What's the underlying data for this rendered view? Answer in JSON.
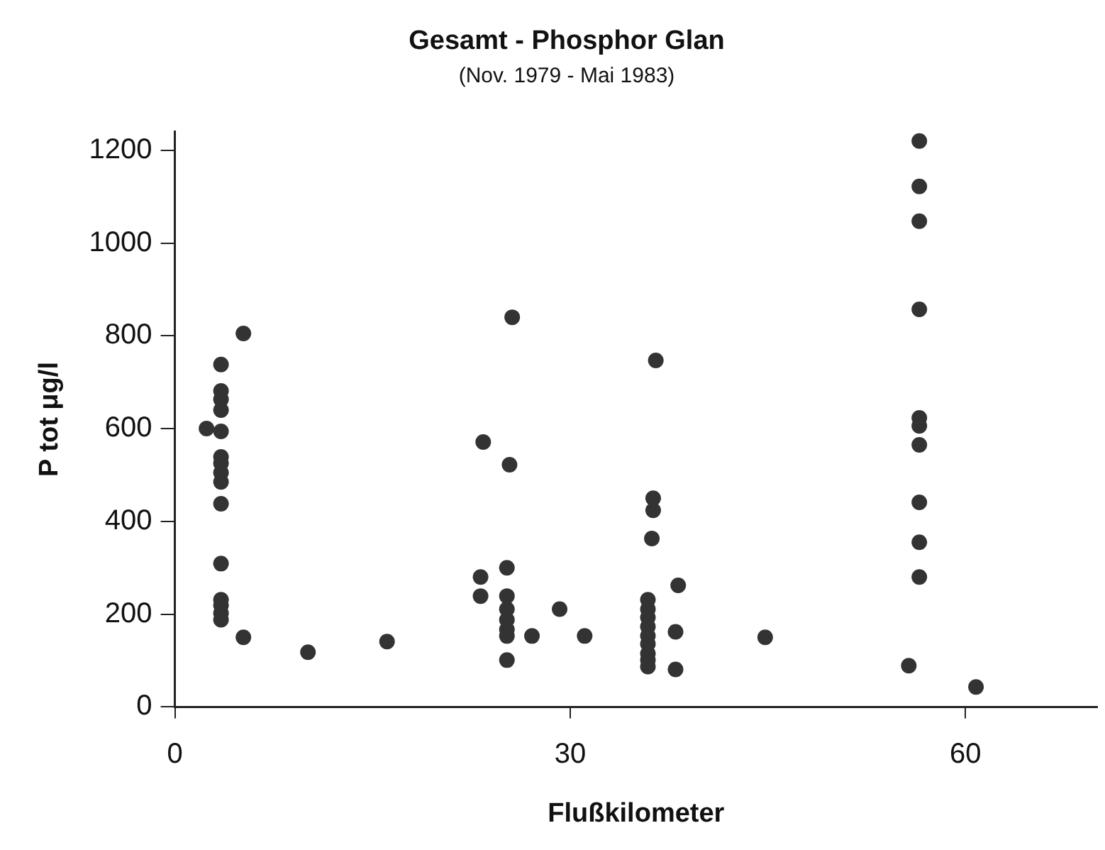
{
  "chart_data": {
    "type": "scatter",
    "title": "Gesamt - Phosphor Glan",
    "subtitle": "(Nov. 1979 - Mai 1983)",
    "xlabel": "Flußkilometer",
    "ylabel": "P tot μg/l",
    "x": [
      3.5,
      3.5,
      3.5,
      3.5,
      3.5,
      3.5,
      3.5,
      3.5,
      3.5,
      3.5,
      3.5,
      3.5,
      3.5,
      3.5,
      3.5,
      2.4,
      5.2,
      5.2,
      10.1,
      16.1,
      25.6,
      23.4,
      25.4,
      23.2,
      23.2,
      25.2,
      25.2,
      25.2,
      25.2,
      25.2,
      25.2,
      25.2,
      27.1,
      29.2,
      31.1,
      36.5,
      36.3,
      36.3,
      36.2,
      38.2,
      35.9,
      35.9,
      35.9,
      35.9,
      35.9,
      35.9,
      35.9,
      35.9,
      35.9,
      38.0,
      38.0,
      44.8,
      56.5,
      56.5,
      56.5,
      56.5,
      56.5,
      56.5,
      56.5,
      56.5,
      56.5,
      56.5,
      55.7,
      60.8
    ],
    "values": [
      738,
      681,
      663,
      640,
      594,
      539,
      525,
      505,
      485,
      438,
      309,
      231,
      219,
      202,
      188,
      600,
      805,
      150,
      118,
      141,
      840,
      571,
      522,
      280,
      239,
      300,
      239,
      211,
      188,
      167,
      153,
      101,
      153,
      211,
      153,
      747,
      450,
      424,
      363,
      262,
      231,
      211,
      193,
      173,
      153,
      136,
      115,
      101,
      87,
      162,
      81,
      150,
      1220,
      1122,
      1047,
      857,
      623,
      606,
      565,
      441,
      355,
      280,
      89,
      43
    ],
    "color": "#333333",
    "marker": "circle",
    "xlim": [
      0,
      70
    ],
    "xticks": [
      0,
      30,
      60
    ],
    "ylim": [
      0,
      1240
    ],
    "yticks": [
      0,
      200,
      400,
      600,
      800,
      1000,
      1200
    ],
    "grid": false,
    "legend": false
  }
}
